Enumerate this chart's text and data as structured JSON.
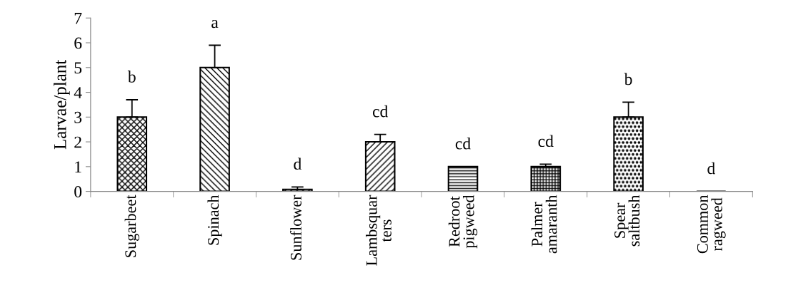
{
  "chart_data": {
    "type": "bar",
    "ylabel": "Larvae/plant",
    "categories": [
      "Sugarbeet",
      "Spinach",
      "Sunflower",
      "Lambsquar\nters",
      "Redroot\npigweed",
      "Palmer\namaranth",
      "Spear\nsaltbush",
      "Common\nragweed"
    ],
    "values": [
      3,
      5,
      0.08,
      2,
      1,
      1,
      3,
      0
    ],
    "errors": [
      [
        3,
        3.7
      ],
      [
        5,
        5.9
      ],
      [
        0.08,
        0.18
      ],
      [
        2,
        2.3
      ],
      null,
      [
        1,
        1.1
      ],
      [
        3,
        3.6
      ],
      null
    ],
    "value_labels": [
      "b",
      "a",
      "d",
      "cd",
      "cd",
      "cd",
      "b",
      "d"
    ],
    "colors": [
      "#000000",
      "#000000",
      "#000000",
      "#000000",
      "#000000",
      "#000000",
      "#000000",
      "#000000"
    ],
    "ylim": [
      0,
      7
    ],
    "yticks": [
      0,
      1,
      2,
      3,
      4,
      5,
      6,
      7
    ],
    "grid": false,
    "legend": false
  }
}
